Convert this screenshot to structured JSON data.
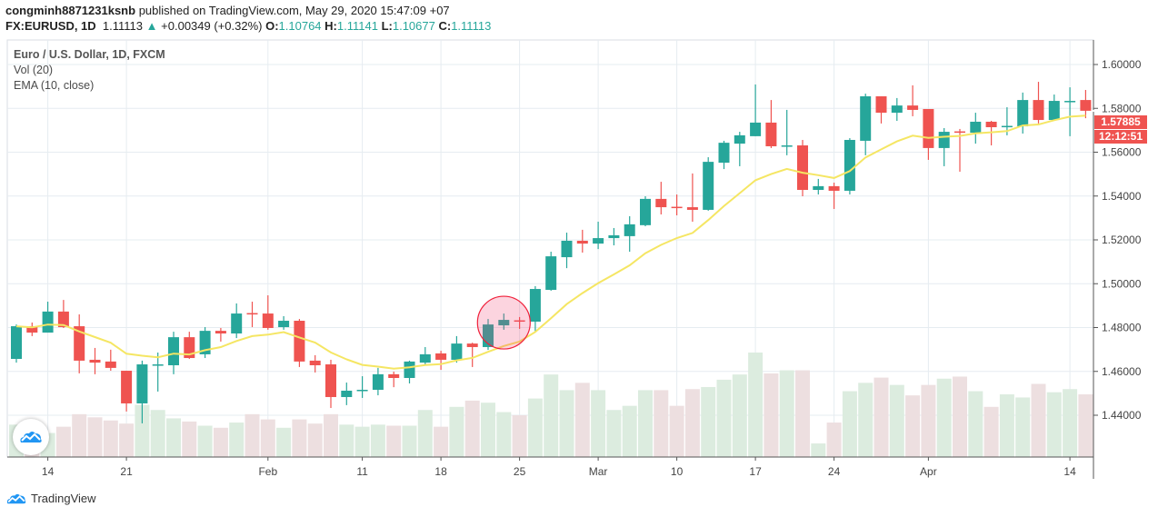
{
  "header": {
    "author": "congminh8871231ksnb",
    "published": "published on TradingView.com, May 29, 2020 15:47:09 +07",
    "symbol": "FX:EURUSD, 1D",
    "last": "1.11113",
    "change": "+0.00349 (+0.32%)",
    "o_label": "O:",
    "o": "1.10764",
    "h_label": "H:",
    "h": "1.11141",
    "l_label": "L:",
    "l": "1.10677",
    "c_label": "C:",
    "c": "1.11113",
    "up_icon": "triangle-up-icon"
  },
  "legend": {
    "title": "Euro / U.S. Dollar, 1D, FXCM",
    "volume": "Vol (20)",
    "ema": "EMA (10, close)"
  },
  "price_labels": {
    "last_price": "1.57885",
    "countdown": "12:12:51"
  },
  "brand": {
    "name": "TradingView",
    "icon": "tradingview-cloud-icon"
  },
  "colors": {
    "up": "#26a69a",
    "down": "#ef5350",
    "vol_up": "#dcecdf",
    "vol_down": "#eddfe0",
    "ema": "#f5e663",
    "annotation": "#f0203a"
  },
  "chart_data": {
    "type": "candlestick",
    "title": "Euro / U.S. Dollar, 1D, FXCM",
    "ylim": [
      1.42,
      1.61
    ],
    "y_ticks": [
      "1.44000",
      "1.46000",
      "1.48000",
      "1.50000",
      "1.52000",
      "1.54000",
      "1.56000",
      "1.58000",
      "1.60000"
    ],
    "x_ticks": [
      {
        "label": "14",
        "index": 2
      },
      {
        "label": "21",
        "index": 7
      },
      {
        "label": "Feb",
        "index": 16
      },
      {
        "label": "11",
        "index": 22
      },
      {
        "label": "18",
        "index": 27
      },
      {
        "label": "25",
        "index": 32
      },
      {
        "label": "Mar",
        "index": 37
      },
      {
        "label": "10",
        "index": 42
      },
      {
        "label": "17",
        "index": 47
      },
      {
        "label": "24",
        "index": 52
      },
      {
        "label": "Apr",
        "index": 58
      },
      {
        "label": "14",
        "index": 67
      }
    ],
    "grid": true,
    "ema_period": 10,
    "annotation": {
      "type": "circle",
      "index": 31
    },
    "ohlc": [
      [
        1.4657,
        1.4814,
        1.464,
        1.4806
      ],
      [
        1.4806,
        1.4823,
        1.4761,
        1.4777
      ],
      [
        1.4777,
        1.4918,
        1.4777,
        1.4873
      ],
      [
        1.4873,
        1.4926,
        1.4798,
        1.4802
      ],
      [
        1.4806,
        1.486,
        1.4591,
        1.4649
      ],
      [
        1.4653,
        1.4707,
        1.4587,
        1.464
      ],
      [
        1.4645,
        1.4699,
        1.4603,
        1.4616
      ],
      [
        1.4603,
        1.4603,
        1.4417,
        1.4454
      ],
      [
        1.4454,
        1.4649,
        1.4363,
        1.4632
      ],
      [
        1.463,
        1.4686,
        1.4508,
        1.4632
      ],
      [
        1.4628,
        1.4781,
        1.4587,
        1.4756
      ],
      [
        1.4756,
        1.4781,
        1.4657,
        1.4661
      ],
      [
        1.4678,
        1.4802,
        1.4661,
        1.4785
      ],
      [
        1.4785,
        1.4798,
        1.4736,
        1.4773
      ],
      [
        1.4773,
        1.491,
        1.4752,
        1.4864
      ],
      [
        1.4866,
        1.4918,
        1.4802,
        1.4862
      ],
      [
        1.4864,
        1.4947,
        1.479,
        1.4798
      ],
      [
        1.4802,
        1.4852,
        1.479,
        1.4831
      ],
      [
        1.4831,
        1.4839,
        1.462,
        1.4645
      ],
      [
        1.4649,
        1.4674,
        1.4595,
        1.4628
      ],
      [
        1.4632,
        1.4653,
        1.4433,
        1.4483
      ],
      [
        1.4483,
        1.4549,
        1.4446,
        1.4512
      ],
      [
        1.4512,
        1.4578,
        1.4479,
        1.4516
      ],
      [
        1.4516,
        1.4616,
        1.4491,
        1.4587
      ],
      [
        1.4587,
        1.4599,
        1.4528,
        1.457
      ],
      [
        1.457,
        1.4649,
        1.4545,
        1.4645
      ],
      [
        1.464,
        1.4711,
        1.4632,
        1.4678
      ],
      [
        1.4682,
        1.4694,
        1.4607,
        1.4653
      ],
      [
        1.4653,
        1.4761,
        1.464,
        1.4727
      ],
      [
        1.4727,
        1.4731,
        1.462,
        1.4711
      ],
      [
        1.4711,
        1.4839,
        1.4698,
        1.4814
      ],
      [
        1.481,
        1.4864,
        1.479,
        1.4835
      ],
      [
        1.4833,
        1.4848,
        1.4794,
        1.4829
      ],
      [
        1.4827,
        1.4989,
        1.4781,
        1.4976
      ],
      [
        1.4972,
        1.5146,
        1.4968,
        1.5125
      ],
      [
        1.5121,
        1.5233,
        1.5071,
        1.5196
      ],
      [
        1.5196,
        1.5246,
        1.5142,
        1.5183
      ],
      [
        1.5183,
        1.5283,
        1.5158,
        1.5208
      ],
      [
        1.5208,
        1.5254,
        1.5175,
        1.5221
      ],
      [
        1.5217,
        1.5308,
        1.5146,
        1.5271
      ],
      [
        1.5267,
        1.5399,
        1.5262,
        1.5387
      ],
      [
        1.5387,
        1.5465,
        1.5316,
        1.5349
      ],
      [
        1.5351,
        1.5407,
        1.5312,
        1.5347
      ],
      [
        1.5349,
        1.5503,
        1.5283,
        1.5337
      ],
      [
        1.5337,
        1.5577,
        1.5333,
        1.5556
      ],
      [
        1.5552,
        1.5652,
        1.5523,
        1.5643
      ],
      [
        1.5639,
        1.5693,
        1.5536,
        1.5677
      ],
      [
        1.5673,
        1.5909,
        1.5673,
        1.5735
      ],
      [
        1.5735,
        1.5838,
        1.5619,
        1.5627
      ],
      [
        1.5629,
        1.5793,
        1.5586,
        1.5631
      ],
      [
        1.5631,
        1.5656,
        1.5399,
        1.5428
      ],
      [
        1.5428,
        1.5478,
        1.5407,
        1.5445
      ],
      [
        1.5445,
        1.5461,
        1.5341,
        1.5424
      ],
      [
        1.5424,
        1.5664,
        1.5407,
        1.5656
      ],
      [
        1.5652,
        1.5867,
        1.5586,
        1.5855
      ],
      [
        1.5855,
        1.5855,
        1.5731,
        1.578
      ],
      [
        1.578,
        1.5847,
        1.5743,
        1.5813
      ],
      [
        1.5813,
        1.5905,
        1.5764,
        1.5793
      ],
      [
        1.5797,
        1.5797,
        1.5565,
        1.5619
      ],
      [
        1.5619,
        1.571,
        1.5536,
        1.5693
      ],
      [
        1.5695,
        1.5706,
        1.5511,
        1.5691
      ],
      [
        1.5689,
        1.578,
        1.5639,
        1.5739
      ],
      [
        1.5739,
        1.5743,
        1.5631,
        1.5714
      ],
      [
        1.5716,
        1.5805,
        1.5677,
        1.572
      ],
      [
        1.5718,
        1.5872,
        1.5685,
        1.5838
      ],
      [
        1.5838,
        1.5921,
        1.5731,
        1.5747
      ],
      [
        1.5747,
        1.5863,
        1.5747,
        1.5834
      ],
      [
        1.5832,
        1.5896,
        1.5673,
        1.5834
      ],
      [
        1.5838,
        1.5884,
        1.5755,
        1.5789
      ]
    ],
    "volume_relative": [
      31,
      26,
      23,
      29,
      41,
      38,
      35,
      32,
      50,
      45,
      37,
      34,
      30,
      28,
      33,
      41,
      36,
      28,
      36,
      32,
      41,
      31,
      29,
      31,
      30,
      30,
      45,
      29,
      48,
      54,
      52,
      43,
      40,
      56,
      79,
      64,
      71,
      64,
      45,
      49,
      64,
      64,
      49,
      65,
      67,
      74,
      79,
      100,
      80,
      83,
      83,
      13,
      33,
      63,
      71,
      76,
      69,
      59,
      69,
      75,
      77,
      63,
      48,
      60,
      57,
      70,
      62,
      65,
      60
    ]
  }
}
